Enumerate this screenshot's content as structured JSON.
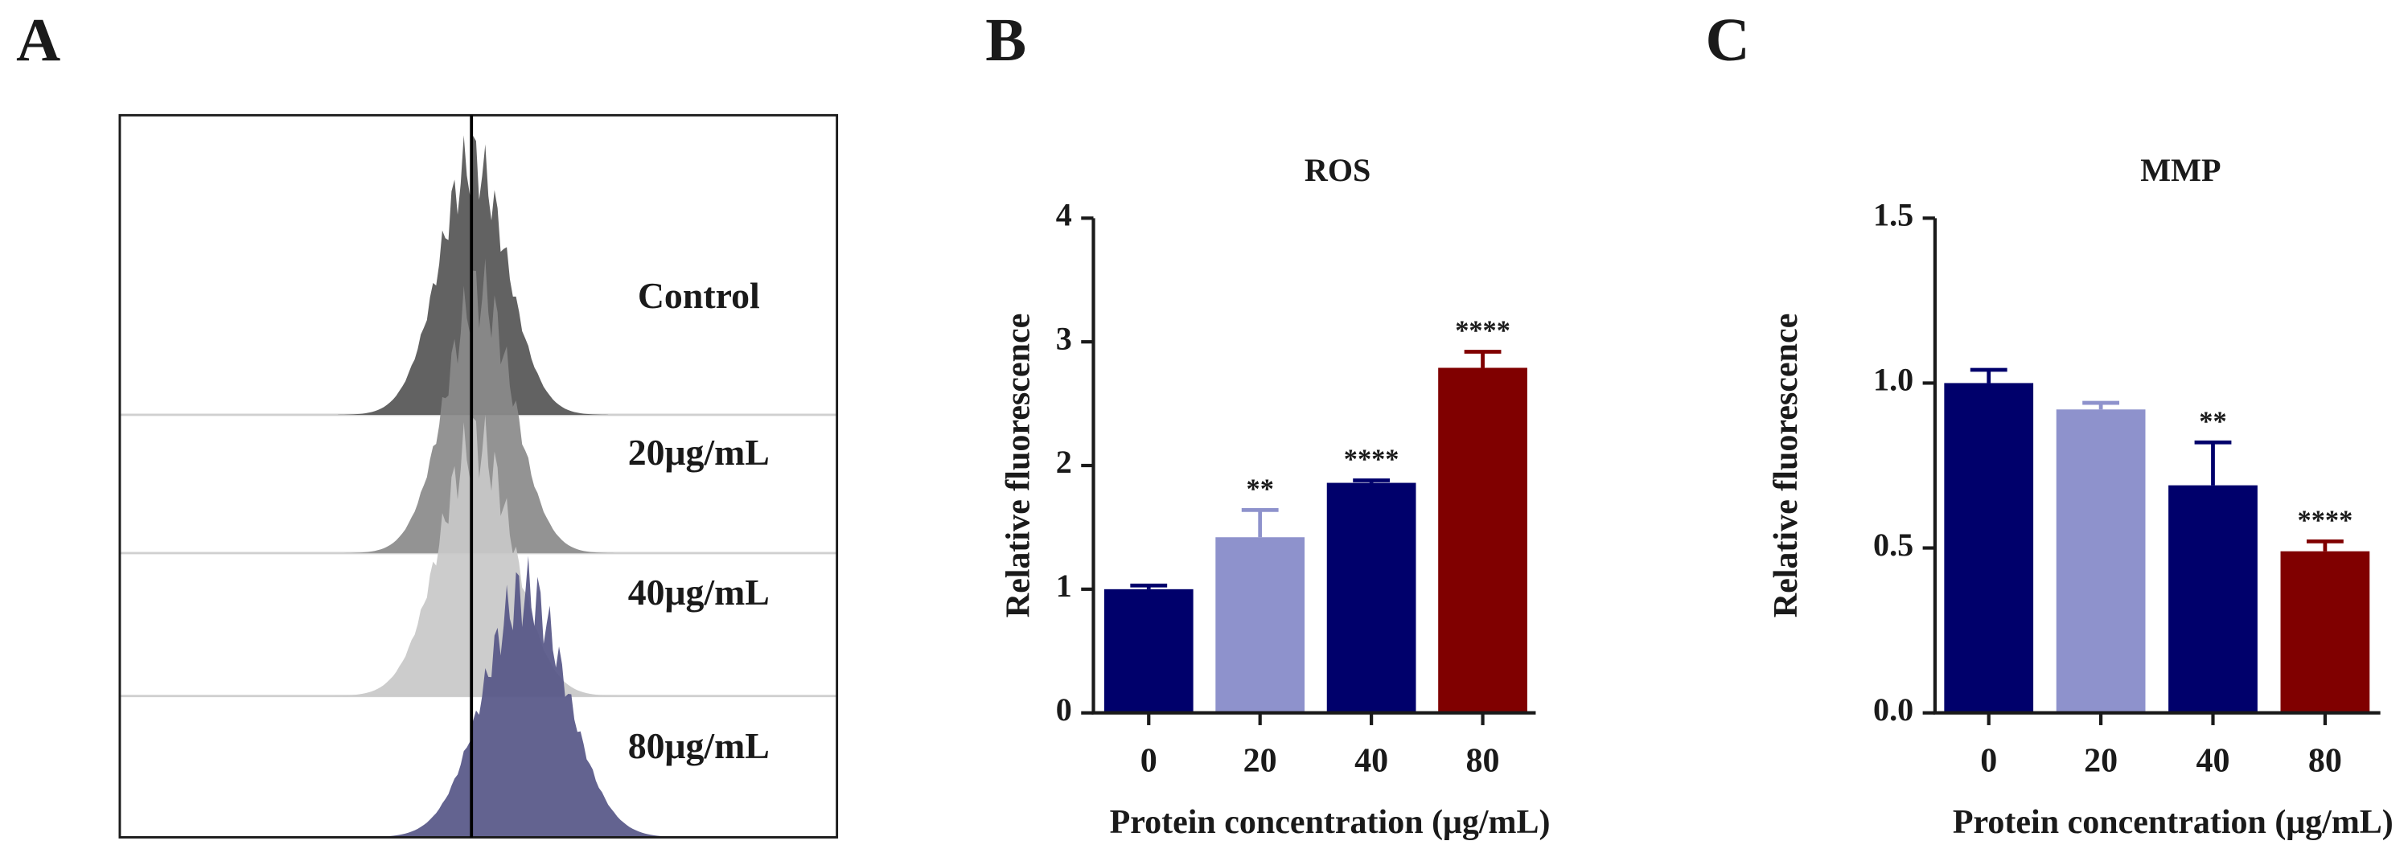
{
  "panel_a": {
    "panel_label": "A",
    "samples": [
      "Control",
      "20μg/mL",
      "40μg/mL",
      "80μg/mL"
    ]
  },
  "chart_data": [
    {
      "type": "bar",
      "panel_label": "B",
      "title": "ROS",
      "x_label": "Protein concentration (μg/mL)",
      "y_label": "Relative fluorescence",
      "categories": [
        "0",
        "20",
        "40",
        "80"
      ],
      "values": [
        1.0,
        1.42,
        1.86,
        2.79
      ],
      "errors": [
        0.03,
        0.22,
        0.02,
        0.13
      ],
      "colors": [
        "#00006b",
        "#8e92cc",
        "#00006b",
        "#800000"
      ],
      "annotations": [
        null,
        "**",
        "****",
        "****"
      ],
      "ylim": [
        0,
        4
      ],
      "yticks": [
        0,
        1,
        2,
        3,
        4
      ]
    },
    {
      "type": "bar",
      "panel_label": "C",
      "title": "MMP",
      "x_label": "Protein concentration (μg/mL)",
      "y_label": "Relative fluorescence",
      "categories": [
        "0",
        "20",
        "40",
        "80"
      ],
      "values": [
        1.0,
        0.92,
        0.69,
        0.49
      ],
      "errors": [
        0.04,
        0.02,
        0.13,
        0.03
      ],
      "colors": [
        "#00006b",
        "#8e92cc",
        "#00006b",
        "#800000"
      ],
      "annotations": [
        null,
        null,
        "**",
        "****"
      ],
      "ylim": [
        0,
        1.5
      ],
      "yticks": [
        {
          "value": 0,
          "label": "0.0"
        },
        {
          "value": 0.5,
          "label": "0.5"
        },
        {
          "value": 1,
          "label": "1.0"
        },
        1.5
      ]
    }
  ]
}
